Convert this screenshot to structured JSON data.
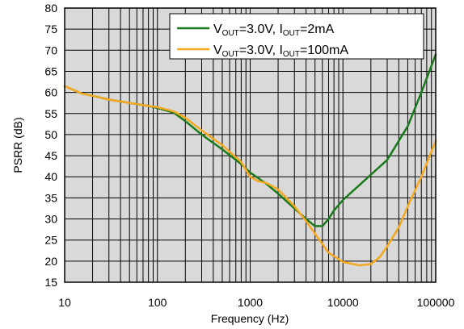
{
  "chart_data": {
    "type": "line",
    "xlabel": "Frequency (Hz)",
    "ylabel": "PSRR (dB)",
    "xscale": "log",
    "xlim": [
      10,
      100000
    ],
    "ylim": [
      15,
      80
    ],
    "grid": true,
    "legend_position": "top-right",
    "plot_background": "#d9d9d9",
    "x_ticks": [
      10,
      100,
      1000,
      10000,
      100000
    ],
    "x_tick_labels": [
      "10",
      "100",
      "1000",
      "10000",
      "100000"
    ],
    "y_ticks": [
      15,
      20,
      25,
      30,
      35,
      40,
      45,
      50,
      55,
      60,
      65,
      70,
      75,
      80
    ],
    "y_tick_labels": [
      "15",
      "20",
      "25",
      "30",
      "35",
      "40",
      "45",
      "50",
      "55",
      "60",
      "65",
      "70",
      "75",
      "80"
    ],
    "series": [
      {
        "name": "VOUT=3.0V, IOUT=2mA",
        "legend": {
          "v": "V",
          "v_sub": "OUT",
          "v_rest": "=3.0V, I",
          "i_sub": "OUT",
          "i_rest": "=2mA"
        },
        "color": "#1a7a1a",
        "x": [
          10,
          15,
          20,
          30,
          50,
          80,
          100,
          150,
          200,
          300,
          500,
          800,
          1000,
          1500,
          2000,
          3000,
          4000,
          5000,
          6000,
          7000,
          8000,
          10000,
          15000,
          20000,
          30000,
          50000,
          70000,
          100000
        ],
        "y": [
          61.5,
          59.8,
          59.2,
          58.3,
          57.5,
          56.8,
          56.3,
          55.2,
          53.2,
          50.0,
          46.5,
          43.0,
          41.0,
          38.3,
          36.0,
          32.5,
          30.0,
          28.3,
          28.3,
          30.0,
          32.0,
          34.5,
          38.0,
          40.5,
          44.0,
          52.0,
          60.0,
          69.0
        ]
      },
      {
        "name": "VOUT=3.0V, IOUT=100mA",
        "legend": {
          "v": "V",
          "v_sub": "OUT",
          "v_rest": "=3.0V, I",
          "i_sub": "OUT",
          "i_rest": "=100mA"
        },
        "color": "#f5a81e",
        "x": [
          10,
          15,
          20,
          30,
          50,
          80,
          100,
          150,
          200,
          300,
          500,
          800,
          1000,
          1200,
          1500,
          2000,
          3000,
          4000,
          5000,
          7000,
          10000,
          15000,
          20000,
          25000,
          30000,
          40000,
          50000,
          70000,
          100000
        ],
        "y": [
          61.5,
          59.8,
          59.2,
          58.3,
          57.5,
          56.8,
          56.5,
          55.5,
          54.0,
          51.0,
          47.5,
          43.5,
          40.0,
          39.0,
          38.5,
          37.0,
          33.0,
          29.5,
          26.5,
          22.0,
          19.8,
          19.0,
          19.3,
          21.0,
          23.5,
          28.0,
          33.0,
          40.0,
          48.5
        ]
      }
    ]
  }
}
